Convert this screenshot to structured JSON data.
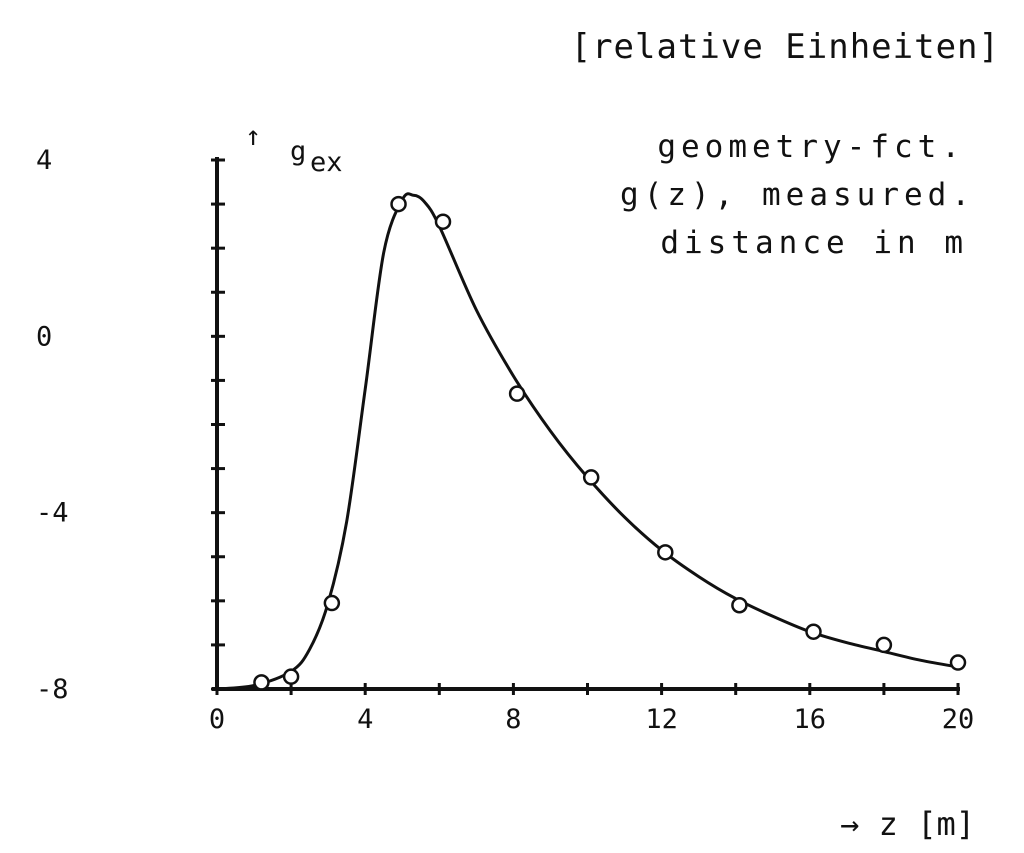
{
  "chart_data": {
    "type": "scatter",
    "title": "[relative Einheiten]",
    "ylabel_arrow": "↑",
    "ylabel_main": "g",
    "ylabel_sub": "ex",
    "xlabel": "→ z [m]",
    "annotation": [
      "geometry-fct.",
      "g(z), measured.",
      "distance in m"
    ],
    "xlim": [
      0,
      20
    ],
    "ylim": [
      -8,
      4
    ],
    "x_ticks": [
      0,
      4,
      8,
      12,
      16,
      20
    ],
    "x_tick_labels": [
      "0",
      "4",
      "8",
      "12",
      "16",
      "20"
    ],
    "y_tick_labels": [
      {
        "value": 4,
        "text": "4"
      },
      {
        "value": 0,
        "text": "0"
      },
      {
        "value": -4,
        "text": "-4"
      },
      {
        "value": -8,
        "text": "-8"
      }
    ],
    "y_minor_step": 1,
    "x_minor_step": 2,
    "series": [
      {
        "kind": "measured points",
        "marker": "circle",
        "x": [
          1.2,
          2.0,
          3.1,
          4.9,
          6.1,
          8.1,
          10.1,
          12.1,
          14.1,
          16.1,
          18.0,
          20.0
        ],
        "y": [
          -7.85,
          -7.72,
          -6.05,
          3.0,
          2.6,
          -1.3,
          -3.2,
          -4.9,
          -6.1,
          -6.7,
          -7.0,
          -7.4
        ]
      },
      {
        "kind": "fitted curve",
        "x": [
          0,
          1,
          2,
          2.5,
          3,
          3.5,
          4,
          4.5,
          5,
          5.3,
          5.6,
          6,
          7,
          8,
          9,
          10,
          11,
          12,
          13,
          14,
          15,
          16,
          17,
          18,
          19,
          20
        ],
        "y": [
          -8.0,
          -7.92,
          -7.6,
          -7.1,
          -6.05,
          -4.2,
          -1.2,
          1.9,
          3.1,
          3.2,
          3.05,
          2.5,
          0.6,
          -0.9,
          -2.15,
          -3.2,
          -4.1,
          -4.85,
          -5.45,
          -5.95,
          -6.35,
          -6.7,
          -6.95,
          -7.15,
          -7.35,
          -7.5
        ]
      }
    ]
  }
}
